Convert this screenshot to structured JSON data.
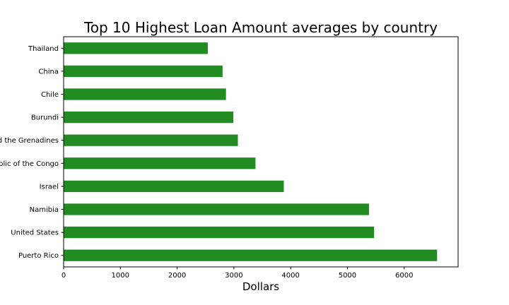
{
  "chart_data": {
    "type": "bar",
    "orientation": "horizontal",
    "title": "Top 10 Highest Loan Amount averages by country",
    "xlabel": "Dollars",
    "ylabel": "",
    "categories": [
      "Puerto Rico",
      "United States",
      "Namibia",
      "Israel",
      "Republic of the Congo",
      "Saint Vincent and the Grenadines",
      "Burundi",
      "Chile",
      "China",
      "Thailand"
    ],
    "values": [
      6580,
      5470,
      5380,
      3880,
      3380,
      3070,
      2990,
      2860,
      2800,
      2540
    ],
    "xlim": [
      0,
      6950
    ],
    "xticks": [
      0,
      1000,
      2000,
      3000,
      4000,
      5000,
      6000
    ],
    "bar_color": "#228b22",
    "grid": false,
    "legend": "none"
  }
}
